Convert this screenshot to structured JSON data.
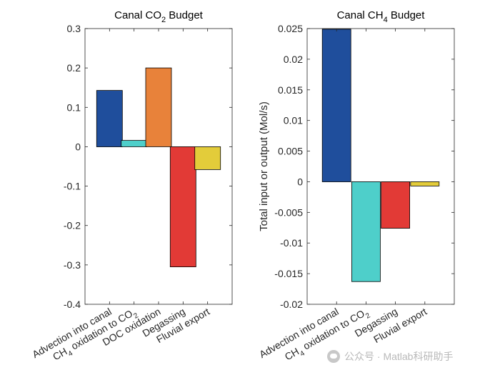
{
  "chart_data": [
    {
      "type": "bar",
      "title": "Canal CO",
      "title_sub": "2",
      "title_suffix": " Budget",
      "ylabel": "",
      "ylim": [
        -0.4,
        0.3
      ],
      "yticks": [
        "0.3",
        "0.2",
        "0.1",
        "0",
        "-0.1",
        "-0.2",
        "-0.3",
        "-0.4"
      ],
      "ytick_values": [
        0.3,
        0.2,
        0.1,
        0,
        -0.1,
        -0.2,
        -0.3,
        -0.4
      ],
      "categories": [
        {
          "text": "Advection into canal"
        },
        {
          "text": "CH",
          "sub": "4",
          "text2": " oxidation to CO",
          "sub2": "2"
        },
        {
          "text": "DOC oxidation"
        },
        {
          "text": "Degassing"
        },
        {
          "text": "Fluvial export"
        }
      ],
      "values": [
        0.143,
        0.016,
        0.2,
        -0.305,
        -0.058
      ],
      "colors": [
        "#1f4e9c",
        "#4ecfca",
        "#e8823a",
        "#e23a36",
        "#e3cc3a"
      ]
    },
    {
      "type": "bar",
      "title": "Canal CH",
      "title_sub": "4",
      "title_suffix": " Budget",
      "ylabel": "Total input or output (Mol/s)",
      "ylim": [
        -0.02,
        0.025
      ],
      "yticks": [
        "0.025",
        "0.02",
        "0.015",
        "0.01",
        "0.005",
        "0",
        "-0.005",
        "-0.01",
        "-0.015",
        "-0.02"
      ],
      "ytick_values": [
        0.025,
        0.02,
        0.015,
        0.01,
        0.005,
        0,
        -0.005,
        -0.01,
        -0.015,
        -0.02
      ],
      "categories": [
        {
          "text": "Advection into canal"
        },
        {
          "text": "CH",
          "sub": "4",
          "text2": " oxidation to CO",
          "sub2": "2"
        },
        {
          "text": "Degassing"
        },
        {
          "text": "Fluvial export"
        }
      ],
      "values": [
        0.0249,
        -0.0163,
        -0.0076,
        -0.0007
      ],
      "colors": [
        "#1f4e9c",
        "#4ecfca",
        "#e23a36",
        "#e3cc3a"
      ]
    }
  ],
  "watermark": {
    "text": "公众号 · Matlab科研助手",
    "icon": "wechat-icon"
  }
}
